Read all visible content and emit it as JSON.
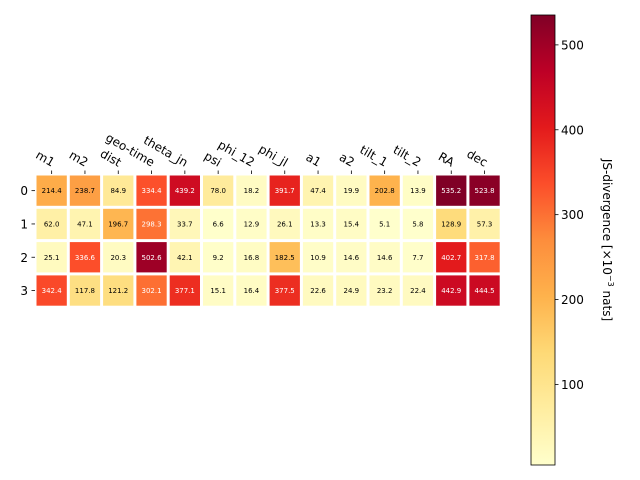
{
  "chart_data": {
    "type": "heatmap",
    "title": "",
    "xlabel": "",
    "ylabel": "",
    "columns": [
      "m1",
      "m2",
      "dist",
      "geo-time",
      "theta_jn",
      "psi",
      "phi_12",
      "phi_jl",
      "a1",
      "a2",
      "tilt_1",
      "tilt_2",
      "RA",
      "dec"
    ],
    "rows": [
      "0",
      "1",
      "2",
      "3"
    ],
    "values": [
      [
        214.4,
        238.7,
        84.9,
        334.4,
        439.2,
        78.0,
        18.2,
        391.7,
        47.4,
        19.9,
        202.8,
        13.9,
        535.2,
        523.8
      ],
      [
        62.0,
        47.1,
        196.7,
        298.3,
        33.7,
        6.6,
        12.9,
        26.1,
        13.3,
        15.4,
        5.1,
        5.8,
        128.9,
        57.3
      ],
      [
        25.1,
        336.6,
        20.3,
        502.6,
        42.1,
        9.2,
        16.8,
        182.5,
        10.9,
        14.6,
        14.6,
        7.7,
        402.7,
        317.8
      ],
      [
        342.4,
        117.8,
        121.2,
        302.1,
        377.1,
        15.1,
        16.4,
        377.5,
        22.6,
        24.9,
        23.2,
        22.4,
        442.9,
        444.5
      ]
    ],
    "value_labels": [
      [
        "214.4",
        "238.7",
        "84.9",
        "334.4",
        "439.2",
        "78.0",
        "18.2",
        "391.7",
        "47.4",
        "19.9",
        "202.8",
        "13.9",
        "535.2",
        "523.8"
      ],
      [
        "62.0",
        "47.1",
        "196.7",
        "298.3",
        "33.7",
        "6.6",
        "12.9",
        "26.1",
        "13.3",
        "15.4",
        "5.1",
        "5.8",
        "128.9",
        "57.3"
      ],
      [
        "25.1",
        "336.6",
        "20.3",
        "502.6",
        "42.1",
        "9.2",
        "16.8",
        "182.5",
        "10.9",
        "14.6",
        "14.6",
        "7.7",
        "402.7",
        "317.8"
      ],
      [
        "342.4",
        "117.8",
        "121.2",
        "302.1",
        "377.1",
        "15.1",
        "16.4",
        "377.5",
        "22.6",
        "24.9",
        "23.2",
        "22.4",
        "442.9",
        "444.5"
      ]
    ],
    "colormap": "YlOrRd",
    "color_range": [
      5.1,
      535.2
    ],
    "colorbar": {
      "label": "JS-divergence [×10",
      "label_exponent": "−3",
      "label_suffix": " nats]",
      "ticks": [
        100,
        200,
        300,
        400,
        500
      ],
      "tick_labels": [
        "100",
        "200",
        "300",
        "400",
        "500"
      ]
    },
    "x_tick_position": "top",
    "grid": false
  }
}
